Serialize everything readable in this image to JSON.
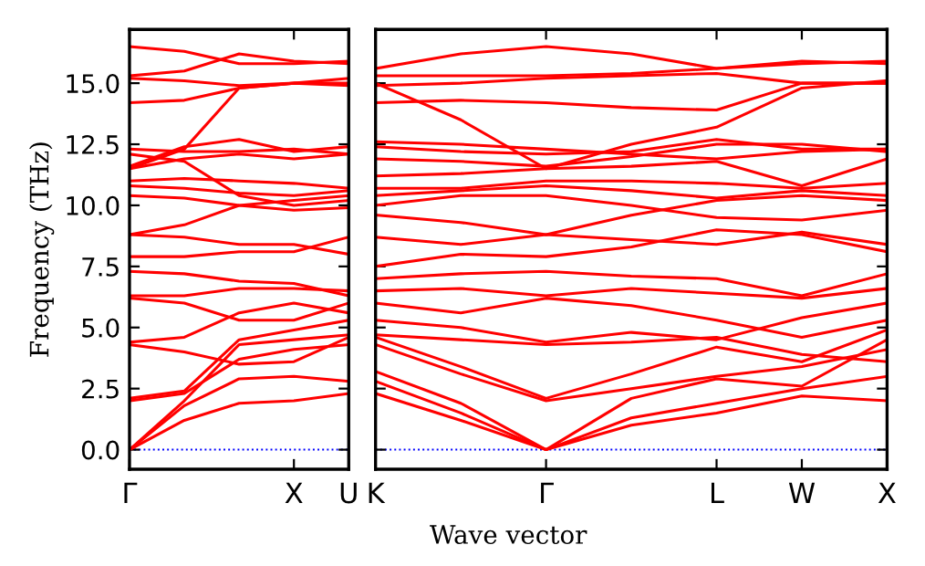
{
  "chart_data": [
    {
      "type": "line",
      "ylabel": "Frequency (THz)",
      "categories": [
        "Γ",
        null,
        null,
        "X",
        "U"
      ],
      "ylim": [
        -0.8,
        17.2
      ],
      "yticks": [
        {
          "value": 0,
          "label": "0.0"
        },
        {
          "value": 2.5,
          "label": "2.5"
        },
        {
          "value": 5,
          "label": "5.0"
        },
        {
          "value": 7.5,
          "label": "7.5"
        },
        {
          "value": 10,
          "label": "10.0"
        },
        {
          "value": 12.5,
          "label": "12.5"
        },
        {
          "value": 15,
          "label": "15.0"
        }
      ],
      "grid": false,
      "legend": false,
      "ref_lines": [
        {
          "axis": "y",
          "value": 0,
          "color": "#0000ff",
          "line_style": "dotted"
        }
      ],
      "series": [
        {
          "color": "#ff0000",
          "values": [
            0,
            1.2,
            1.9,
            2.0,
            2.3
          ]
        },
        {
          "color": "#ff0000",
          "values": [
            0,
            1.8,
            2.9,
            3.0,
            2.8
          ]
        },
        {
          "color": "#ff0000",
          "values": [
            0,
            2.0,
            4.3,
            4.5,
            4.7
          ]
        },
        {
          "color": "#ff0000",
          "values": [
            2.0,
            2.3,
            3.7,
            4.1,
            4.3
          ]
        },
        {
          "color": "#ff0000",
          "values": [
            2.1,
            2.4,
            4.5,
            4.9,
            5.3
          ]
        },
        {
          "color": "#ff0000",
          "values": [
            4.3,
            4.0,
            3.5,
            3.6,
            4.6
          ]
        },
        {
          "color": "#ff0000",
          "values": [
            4.4,
            4.6,
            5.6,
            6.0,
            5.6
          ]
        },
        {
          "color": "#ff0000",
          "values": [
            6.2,
            6.0,
            5.3,
            5.3,
            6.0
          ]
        },
        {
          "color": "#ff0000",
          "values": [
            6.3,
            6.3,
            6.6,
            6.6,
            6.5
          ]
        },
        {
          "color": "#ff0000",
          "values": [
            7.3,
            7.2,
            6.9,
            6.8,
            6.3
          ]
        },
        {
          "color": "#ff0000",
          "values": [
            7.9,
            7.9,
            8.1,
            8.1,
            8.7
          ]
        },
        {
          "color": "#ff0000",
          "values": [
            8.8,
            8.7,
            8.4,
            8.4,
            8.0
          ]
        },
        {
          "color": "#ff0000",
          "values": [
            8.8,
            9.2,
            10.0,
            10.2,
            10.4
          ]
        },
        {
          "color": "#ff0000",
          "values": [
            10.4,
            10.3,
            10.0,
            9.8,
            9.9
          ]
        },
        {
          "color": "#ff0000",
          "values": [
            10.8,
            10.7,
            10.5,
            10.4,
            10.6
          ]
        },
        {
          "color": "#ff0000",
          "values": [
            11.0,
            11.1,
            11.0,
            10.9,
            10.7
          ]
        },
        {
          "color": "#ff0000",
          "values": [
            11.5,
            11.9,
            12.1,
            11.9,
            12.1
          ]
        },
        {
          "color": "#ff0000",
          "values": [
            11.6,
            12.4,
            12.7,
            12.2,
            12.4
          ]
        },
        {
          "color": "#ff0000",
          "values": [
            12.1,
            11.8,
            10.4,
            10.0,
            10.2
          ]
        },
        {
          "color": "#ff0000",
          "values": [
            12.3,
            12.2,
            12.2,
            12.3,
            12.1
          ]
        },
        {
          "color": "#ff0000",
          "values": [
            11.5,
            12.3,
            14.8,
            15.0,
            15.0
          ]
        },
        {
          "color": "#ff0000",
          "values": [
            14.2,
            14.3,
            14.8,
            15.0,
            14.9
          ]
        },
        {
          "color": "#ff0000",
          "values": [
            15.2,
            15.1,
            14.9,
            15.0,
            15.2
          ]
        },
        {
          "color": "#ff0000",
          "values": [
            15.3,
            15.5,
            16.2,
            15.9,
            15.8
          ]
        },
        {
          "color": "#ff0000",
          "values": [
            16.5,
            16.3,
            15.8,
            15.8,
            15.9
          ]
        }
      ]
    },
    {
      "type": "line",
      "xlabel": "Wave vector",
      "tick_labels": "x",
      "categories": [
        "K",
        null,
        "Γ",
        null,
        "L",
        "W",
        "X"
      ],
      "ylim": [
        -0.8,
        17.2
      ],
      "yticks": [
        {
          "value": 0,
          "label": null
        },
        {
          "value": 2.5,
          "label": null
        },
        {
          "value": 5,
          "label": null
        },
        {
          "value": 7.5,
          "label": null
        },
        {
          "value": 10,
          "label": null
        },
        {
          "value": 12.5,
          "label": null
        },
        {
          "value": 15,
          "label": null
        }
      ],
      "grid": false,
      "legend": false,
      "ref_lines": [
        {
          "axis": "y",
          "value": 0,
          "color": "#0000ff",
          "line_style": "dotted"
        }
      ],
      "series": [
        {
          "color": "#ff0000",
          "values": [
            2.3,
            1.2,
            0,
            1.0,
            1.5,
            2.2,
            2.0
          ]
        },
        {
          "color": "#ff0000",
          "values": [
            2.8,
            1.5,
            0,
            1.3,
            1.9,
            2.5,
            3.0
          ]
        },
        {
          "color": "#ff0000",
          "values": [
            3.2,
            1.9,
            0,
            2.1,
            2.9,
            2.6,
            4.5
          ]
        },
        {
          "color": "#ff0000",
          "values": [
            4.3,
            3.1,
            2.0,
            2.5,
            3.0,
            3.4,
            4.1
          ]
        },
        {
          "color": "#ff0000",
          "values": [
            4.6,
            3.4,
            2.1,
            3.1,
            4.2,
            3.6,
            4.9
          ]
        },
        {
          "color": "#ff0000",
          "values": [
            4.7,
            4.5,
            4.3,
            4.4,
            4.6,
            3.9,
            3.6
          ]
        },
        {
          "color": "#ff0000",
          "values": [
            5.3,
            5.0,
            4.4,
            4.8,
            4.5,
            5.4,
            6.0
          ]
        },
        {
          "color": "#ff0000",
          "values": [
            6.0,
            5.6,
            6.2,
            5.9,
            5.3,
            4.6,
            5.3
          ]
        },
        {
          "color": "#ff0000",
          "values": [
            6.5,
            6.6,
            6.3,
            6.6,
            6.4,
            6.2,
            6.6
          ]
        },
        {
          "color": "#ff0000",
          "values": [
            7.0,
            7.2,
            7.3,
            7.1,
            7.0,
            6.3,
            7.2
          ]
        },
        {
          "color": "#ff0000",
          "values": [
            7.5,
            8.0,
            7.9,
            8.3,
            9.0,
            8.8,
            8.1
          ]
        },
        {
          "color": "#ff0000",
          "values": [
            8.7,
            8.4,
            8.8,
            8.6,
            8.4,
            8.9,
            8.4
          ]
        },
        {
          "color": "#ff0000",
          "values": [
            9.6,
            9.3,
            8.8,
            9.6,
            10.2,
            10.4,
            10.2
          ]
        },
        {
          "color": "#ff0000",
          "values": [
            10.0,
            10.4,
            10.4,
            10.0,
            9.5,
            9.4,
            9.8
          ]
        },
        {
          "color": "#ff0000",
          "values": [
            10.4,
            10.6,
            10.8,
            10.6,
            10.3,
            10.6,
            10.4
          ]
        },
        {
          "color": "#ff0000",
          "values": [
            10.7,
            10.7,
            11.0,
            11.0,
            10.9,
            10.7,
            10.9
          ]
        },
        {
          "color": "#ff0000",
          "values": [
            11.2,
            11.3,
            11.5,
            11.6,
            11.8,
            10.8,
            11.9
          ]
        },
        {
          "color": "#ff0000",
          "values": [
            11.9,
            11.8,
            11.6,
            12.0,
            12.5,
            12.5,
            12.2
          ]
        },
        {
          "color": "#ff0000",
          "values": [
            12.4,
            12.2,
            12.1,
            12.2,
            12.7,
            12.3,
            12.3
          ]
        },
        {
          "color": "#ff0000",
          "values": [
            12.6,
            12.5,
            12.3,
            12.1,
            11.9,
            12.2,
            12.3
          ]
        },
        {
          "color": "#ff0000",
          "values": [
            15.0,
            13.5,
            11.5,
            12.5,
            13.2,
            14.8,
            15.1
          ]
        },
        {
          "color": "#ff0000",
          "values": [
            14.2,
            14.3,
            14.2,
            14.0,
            13.9,
            15.0,
            15.0
          ]
        },
        {
          "color": "#ff0000",
          "values": [
            14.9,
            15.0,
            15.2,
            15.3,
            15.4,
            15.0,
            15.0
          ]
        },
        {
          "color": "#ff0000",
          "values": [
            15.3,
            15.3,
            15.3,
            15.4,
            15.6,
            15.8,
            15.9
          ]
        },
        {
          "color": "#ff0000",
          "values": [
            15.6,
            16.2,
            16.5,
            16.2,
            15.6,
            15.9,
            15.8
          ]
        }
      ]
    }
  ]
}
